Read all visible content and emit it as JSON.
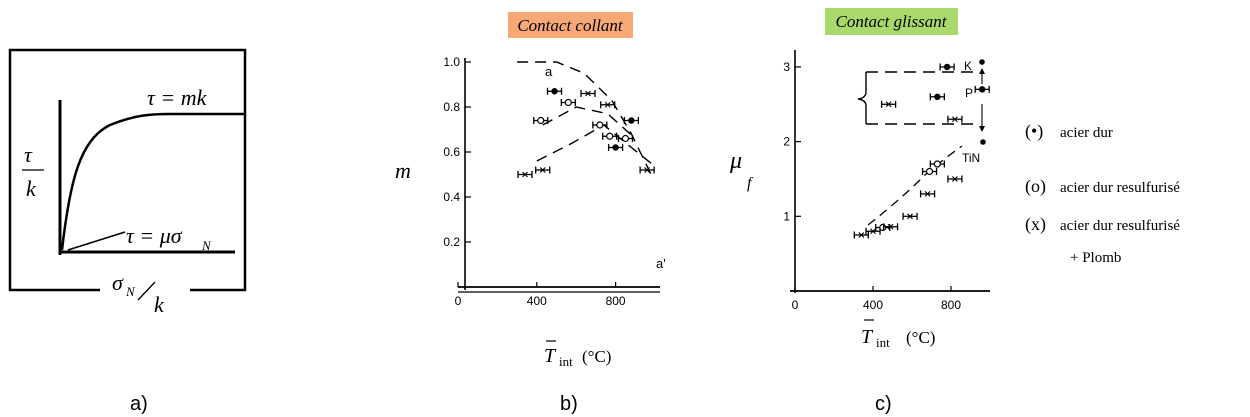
{
  "panel_a": {
    "caption": "a)",
    "tau": "τ",
    "k": "k",
    "plateau_label": "τ = mk",
    "slope_label": "τ = μσ",
    "slope_sub": "N",
    "xlabel_sigma": "σ",
    "xlabel_sub": "N",
    "xlabel_k": "k"
  },
  "panel_b": {
    "caption": "b)",
    "badge": "Contact collant",
    "badge_color": "#f7a877",
    "ylabel": "m",
    "xlabel_main": "T",
    "xlabel_sub": "int",
    "xlabel_unit": "(°C)",
    "curve_label_a": "a",
    "curve_label_a2": "a'"
  },
  "panel_c": {
    "caption": "c)",
    "badge": "Contact glissant",
    "badge_color": "#a8d96a",
    "ylabel": "μ",
    "ylabel_sub": "f",
    "xlabel_main": "T",
    "xlabel_sub": "int",
    "xlabel_unit": "(°C)",
    "annot_k": "K",
    "annot_p": "P",
    "annot_tin": "TiN"
  },
  "legend": {
    "items": [
      {
        "marker": "(•)",
        "text": "acier dur"
      },
      {
        "marker": "(o)",
        "text": "acier dur resulfurisé"
      },
      {
        "marker": "(x)",
        "text": "acier dur resulfurisé"
      }
    ],
    "extra": "+ Plomb"
  },
  "chart_data": [
    {
      "type": "line",
      "panel": "a",
      "description_free": true,
      "title": "",
      "xlabel": "σN/k",
      "ylabel": "τ/k",
      "series": [
        {
          "name": "τ = mk",
          "x": [
            0,
            0.1,
            0.2,
            0.35,
            0.5,
            0.7,
            1.0
          ],
          "y": [
            0,
            0.55,
            0.75,
            0.9,
            0.97,
            1.0,
            1.0
          ]
        },
        {
          "name": "τ = μσN",
          "x": [
            0,
            0.15
          ],
          "y": [
            0,
            0.2
          ]
        }
      ]
    },
    {
      "type": "scatter",
      "panel": "b",
      "title": "Contact collant",
      "xlabel": "T int (°C)",
      "ylabel": "m",
      "xlim": [
        0,
        1000
      ],
      "ylim": [
        0,
        1.0
      ],
      "xticks": [
        0,
        400,
        800
      ],
      "yticks": [
        0.2,
        0.4,
        0.6,
        0.8,
        1.0
      ],
      "points": [
        {
          "x": 340,
          "y": 0.5,
          "marker": "x"
        },
        {
          "x": 430,
          "y": 0.52,
          "marker": "x"
        },
        {
          "x": 420,
          "y": 0.74,
          "marker": "o"
        },
        {
          "x": 490,
          "y": 0.87,
          "marker": "dot"
        },
        {
          "x": 560,
          "y": 0.82,
          "marker": "o"
        },
        {
          "x": 660,
          "y": 0.86,
          "marker": "x"
        },
        {
          "x": 720,
          "y": 0.72,
          "marker": "o"
        },
        {
          "x": 760,
          "y": 0.81,
          "marker": "x"
        },
        {
          "x": 770,
          "y": 0.67,
          "marker": "o"
        },
        {
          "x": 800,
          "y": 0.62,
          "marker": "dot"
        },
        {
          "x": 850,
          "y": 0.66,
          "marker": "o"
        },
        {
          "x": 880,
          "y": 0.74,
          "marker": "dot"
        },
        {
          "x": 960,
          "y": 0.52,
          "marker": "x"
        }
      ],
      "trend_lines": [
        {
          "label": "a",
          "x": [
            300,
            500,
            640,
            780,
            880,
            980
          ],
          "y": [
            1.0,
            1.0,
            0.95,
            0.83,
            0.68,
            0.5
          ]
        },
        {
          "label": "",
          "x": [
            430,
            600,
            760,
            900
          ],
          "y": [
            0.72,
            0.8,
            0.77,
            0.66
          ]
        },
        {
          "label": "a'",
          "x": [
            400,
            580,
            740,
            880,
            980
          ],
          "y": [
            0.56,
            0.64,
            0.72,
            0.62,
            0.55
          ]
        }
      ]
    },
    {
      "type": "scatter",
      "panel": "c",
      "title": "Contact glissant",
      "xlabel": "T int (°C)",
      "ylabel": "μf",
      "xlim": [
        0,
        1000
      ],
      "ylim": [
        0,
        3.2
      ],
      "xticks": [
        0,
        400,
        800
      ],
      "yticks": [
        1,
        2,
        3
      ],
      "points": [
        {
          "x": 340,
          "y": 0.75,
          "marker": "x"
        },
        {
          "x": 400,
          "y": 0.8,
          "marker": "x"
        },
        {
          "x": 450,
          "y": 0.85,
          "marker": "o"
        },
        {
          "x": 490,
          "y": 0.86,
          "marker": "x"
        },
        {
          "x": 590,
          "y": 1.0,
          "marker": "x"
        },
        {
          "x": 680,
          "y": 1.3,
          "marker": "x"
        },
        {
          "x": 690,
          "y": 1.6,
          "marker": "o"
        },
        {
          "x": 730,
          "y": 1.7,
          "marker": "o"
        },
        {
          "x": 820,
          "y": 1.5,
          "marker": "x"
        },
        {
          "x": 480,
          "y": 2.5,
          "marker": "x"
        },
        {
          "x": 730,
          "y": 2.6,
          "marker": "dot"
        },
        {
          "x": 820,
          "y": 2.3,
          "marker": "x"
        },
        {
          "x": 780,
          "y": 3.0,
          "marker": "dot"
        },
        {
          "x": 960,
          "y": 2.7,
          "marker": "dot"
        }
      ]
    }
  ]
}
